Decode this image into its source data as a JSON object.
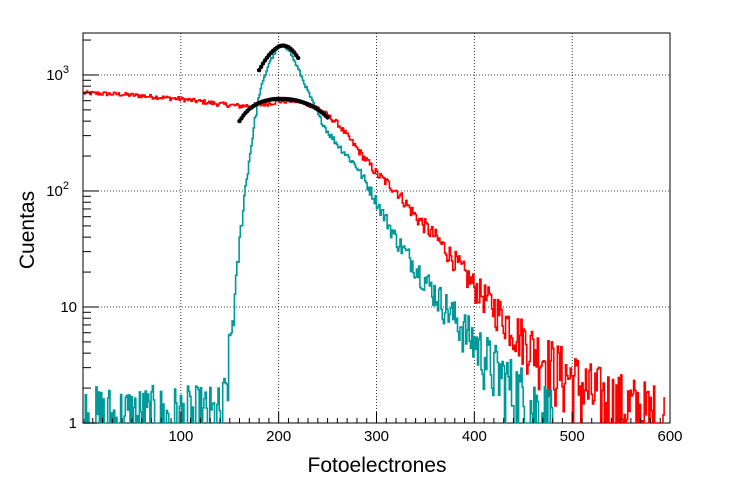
{
  "chart_data": {
    "type": "line",
    "xlabel": "Fotoelectrones",
    "ylabel": "Cuentas",
    "xlim": [
      0,
      600
    ],
    "ylim": [
      1,
      2300
    ],
    "yscale": "log",
    "grid": true,
    "x_ticks": [
      {
        "value": 100,
        "label": "100"
      },
      {
        "value": 200,
        "label": "200"
      },
      {
        "value": 300,
        "label": "300"
      },
      {
        "value": 400,
        "label": "400"
      },
      {
        "value": 500,
        "label": "500"
      },
      {
        "value": 600,
        "label": "600"
      }
    ],
    "y_ticks": [
      {
        "value": 1,
        "base": "1",
        "exp": ""
      },
      {
        "value": 10,
        "base": "10",
        "exp": ""
      },
      {
        "value": 100,
        "base": "10",
        "exp": "2"
      },
      {
        "value": 1000,
        "base": "10",
        "exp": "3"
      }
    ],
    "series": [
      {
        "color": "#ff0000",
        "style": "histogram",
        "x": [
          0,
          20,
          40,
          60,
          80,
          100,
          120,
          140,
          160,
          180,
          200,
          210,
          220,
          240,
          260,
          280,
          300,
          320,
          340,
          360,
          380,
          400,
          420,
          440,
          460,
          480,
          500,
          520,
          540,
          560,
          580,
          595
        ],
        "y": [
          700,
          690,
          680,
          660,
          640,
          620,
          590,
          560,
          540,
          550,
          590,
          600,
          590,
          520,
          380,
          230,
          140,
          100,
          60,
          40,
          25,
          15,
          10,
          6.5,
          4.5,
          3.2,
          2.4,
          1.8,
          1.5,
          1.3,
          1.1,
          1.0
        ]
      },
      {
        "color": "#009999",
        "style": "histogram",
        "x": [
          0,
          140,
          145,
          150,
          155,
          160,
          165,
          170,
          175,
          180,
          190,
          200,
          205,
          210,
          220,
          230,
          240,
          250,
          260,
          270,
          280,
          300,
          320,
          340,
          360,
          380,
          400,
          420,
          440,
          460,
          480
        ],
        "y": [
          1,
          1,
          1.5,
          5,
          12,
          40,
          100,
          200,
          400,
          700,
          1300,
          1750,
          1780,
          1650,
          1100,
          700,
          450,
          320,
          250,
          200,
          160,
          80,
          38,
          22,
          13,
          8,
          5,
          3,
          2,
          1.4,
          1
        ]
      },
      {
        "color": "#000000",
        "style": "fit",
        "x": [
          160,
          165,
          170,
          175,
          180,
          185,
          190,
          195,
          200,
          205,
          210,
          215,
          220,
          225,
          230,
          235,
          240,
          245,
          250
        ],
        "y": [
          400,
          460,
          510,
          545,
          575,
          595,
          610,
          618,
          622,
          622,
          618,
          610,
          598,
          580,
          560,
          535,
          505,
          470,
          430
        ]
      },
      {
        "color": "#000000",
        "style": "fit",
        "x": [
          180,
          185,
          190,
          195,
          200,
          205,
          210,
          215,
          220
        ],
        "y": [
          1100,
          1300,
          1480,
          1640,
          1760,
          1800,
          1740,
          1600,
          1400
        ]
      }
    ]
  }
}
